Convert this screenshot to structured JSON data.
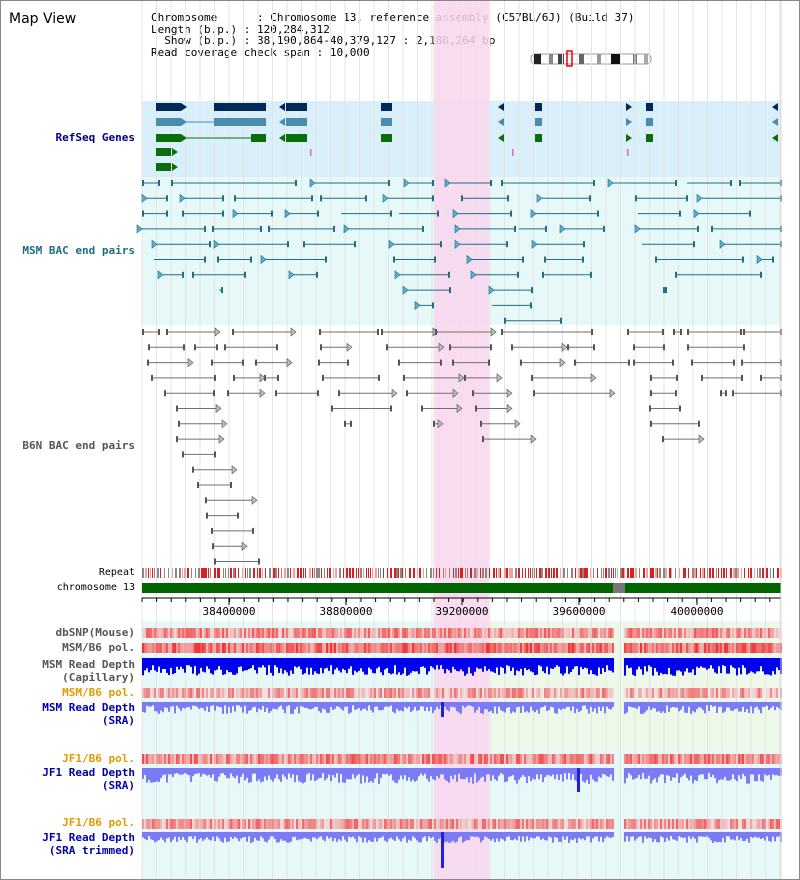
{
  "header": {
    "title": "Map View",
    "chromosome_label": "Chromosome",
    "chromosome_value": "Chromosome 13, reference assembly (C57BL/6J) (Build 37)",
    "length_label": "Length (b.p.)",
    "length_value": "120,284,312",
    "show_label": "Show (b.p.)",
    "show_value": "38,190,864-40,379,127 : 2,188,264 bp",
    "coverage_label": "Read coverage check span",
    "coverage_value": "10,000"
  },
  "tracks": {
    "refseq": "RefSeq Genes",
    "msm_bac": "MSM BAC end pairs",
    "b6n_bac": "B6N BAC end pairs",
    "repeat": "Repeat",
    "chromosome": "chromosome 13",
    "dbsnp": "dbSNP(Mouse)",
    "msm_b6_pol_1": "MSM/B6 pol.",
    "msm_read_depth_cap_1": "MSM Read Depth",
    "msm_read_depth_cap_2": "(Capillary)",
    "msm_b6_pol_2": "MSM/B6 pol.",
    "msm_read_depth_sra_1": "MSM Read Depth",
    "msm_read_depth_sra_2": "(SRA)",
    "jf1_b6_pol_1": "JF1/B6 pol.",
    "jf1_read_depth_sra_1": "JF1 Read Depth",
    "jf1_read_depth_sra_2": "(SRA)",
    "jf1_b6_pol_2": "JF1/B6 pol.",
    "jf1_read_depth_trim_1": "JF1 Read Depth",
    "jf1_read_depth_trim_2": "(SRA trimmed)"
  },
  "axis": {
    "ticks": [
      "38400000",
      "38800000",
      "39200000",
      "39600000",
      "40000000"
    ]
  },
  "colors": {
    "highlight": "#f9d6ef",
    "refseq_bg": "#d9eff9",
    "msm_bg": "#e6f8f8",
    "b6n_bg": "#ffffff",
    "chromosome_bar": "#006400",
    "msm_label": "#00007f",
    "msm_bac_color": "#1f6d86",
    "b6n_color": "#707070",
    "orange_label": "#e19b00",
    "read_depth_blue": "#0000ee",
    "read_depth_light": "#7b7bf7"
  }
}
